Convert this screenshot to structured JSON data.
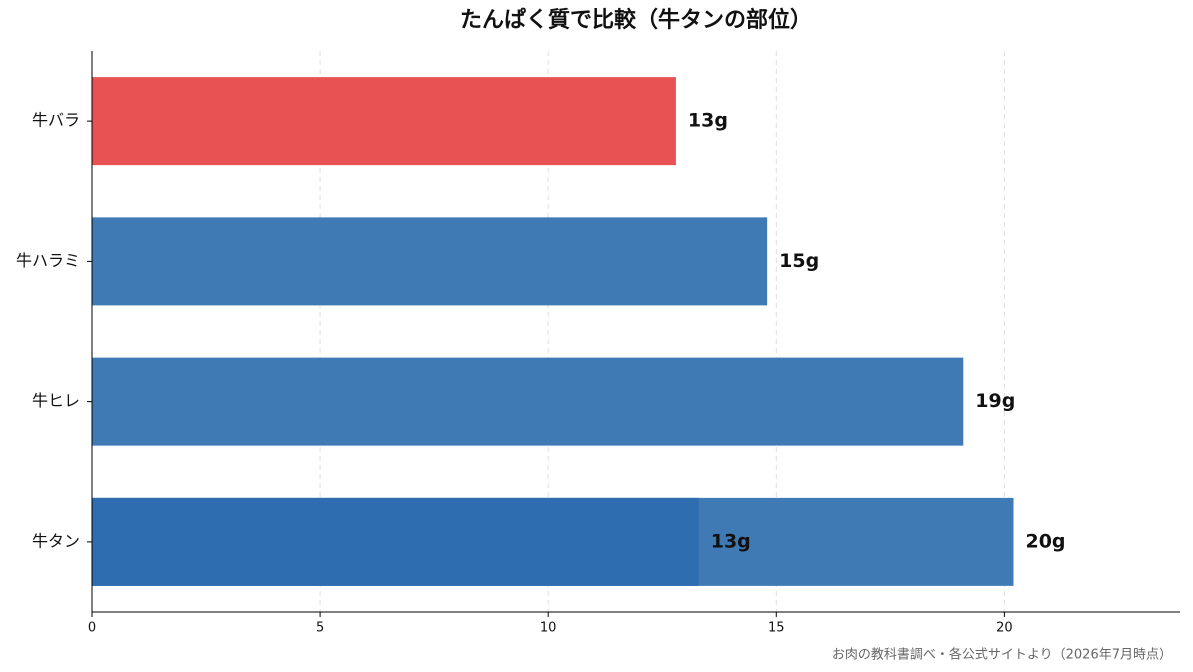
{
  "chart_data": {
    "type": "hbar",
    "title": "たんぱく質で比較（牛タンの部位）",
    "source": "お肉の教科書調べ・各公式サイトより（2026年7月時点）",
    "categories": [
      "牛バラ",
      "牛ハラミ",
      "牛ヒレ",
      "牛タン"
    ],
    "series": [
      {
        "values": [
          12.8,
          14.8,
          19.1,
          20.2
        ],
        "value_labels": [
          "13g",
          "15g",
          "19g",
          "20g"
        ],
        "colors": [
          "#e85252",
          "#3f7ab5",
          "#3f7ab5",
          "#3f7ab5"
        ]
      },
      {
        "values": [
          null,
          null,
          null,
          13.3
        ],
        "value_labels": [
          null,
          null,
          null,
          "13g"
        ],
        "color": "#2e6db0"
      }
    ],
    "xlim": [
      0,
      23.85
    ],
    "xticks": [
      0,
      5,
      10,
      15,
      20
    ],
    "grid": true
  }
}
